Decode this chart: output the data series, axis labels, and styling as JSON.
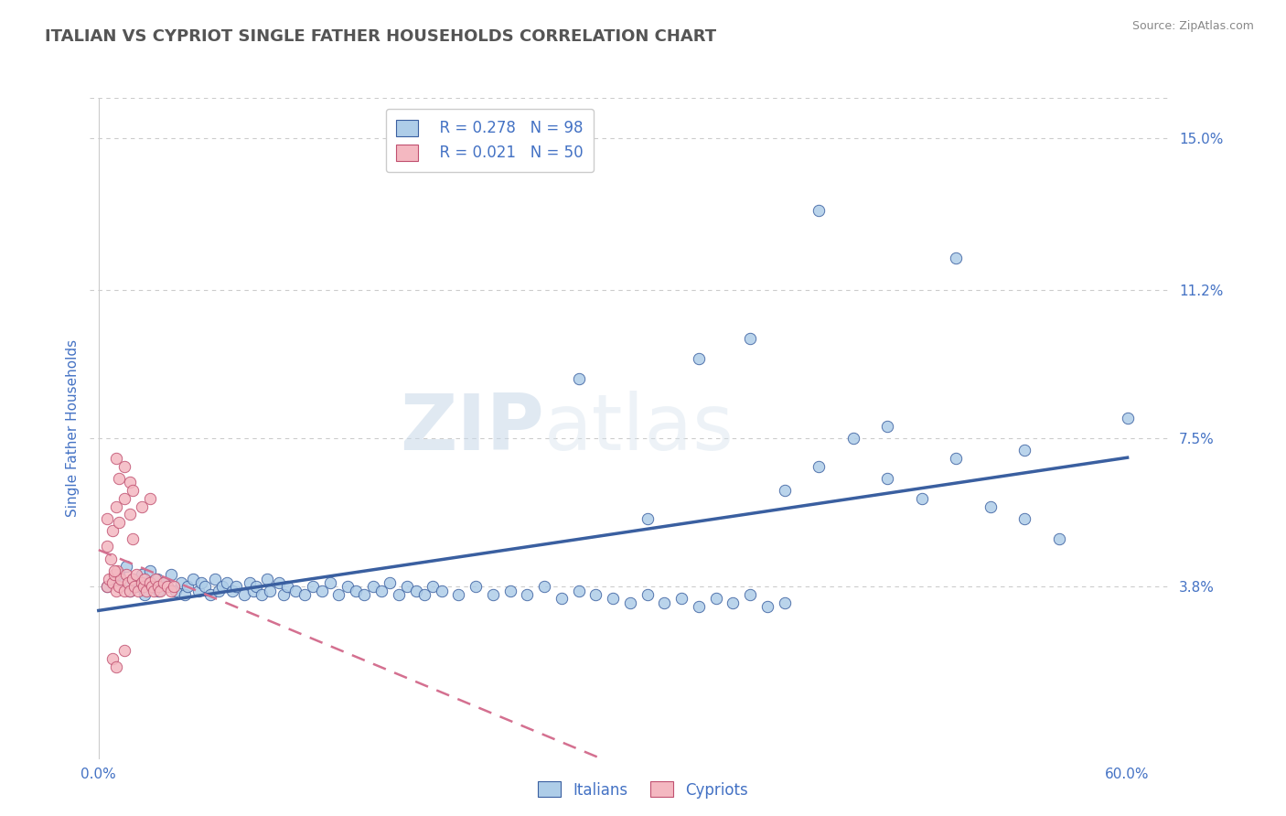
{
  "title": "ITALIAN VS CYPRIOT SINGLE FATHER HOUSEHOLDS CORRELATION CHART",
  "source": "Source: ZipAtlas.com",
  "ylabel": "Single Father Households",
  "xlim": [
    -0.005,
    0.625
  ],
  "ylim": [
    -0.005,
    0.16
  ],
  "xtick_positions": [
    0.0,
    0.6
  ],
  "xticklabels": [
    "0.0%",
    "60.0%"
  ],
  "ytick_positions": [
    0.038,
    0.075,
    0.112,
    0.15
  ],
  "ytick_labels": [
    "3.8%",
    "7.5%",
    "11.2%",
    "15.0%"
  ],
  "legend_r_italian": "R = 0.278",
  "legend_n_italian": "N = 98",
  "legend_r_cypriot": "R = 0.021",
  "legend_n_cypriot": "N = 50",
  "italian_color": "#aecde8",
  "cypriot_color": "#f4b8c1",
  "italian_line_color": "#3a5fa0",
  "cypriot_line_color": "#d47090",
  "watermark_zip": "ZIP",
  "watermark_atlas": "atlas",
  "background_color": "#ffffff",
  "grid_color": "#cccccc",
  "title_color": "#555555",
  "axis_label_color": "#4472c4",
  "italian_scatter_x": [
    0.005,
    0.01,
    0.012,
    0.015,
    0.016,
    0.018,
    0.02,
    0.022,
    0.025,
    0.027,
    0.03,
    0.032,
    0.034,
    0.035,
    0.038,
    0.04,
    0.042,
    0.045,
    0.048,
    0.05,
    0.052,
    0.055,
    0.058,
    0.06,
    0.062,
    0.065,
    0.068,
    0.07,
    0.072,
    0.075,
    0.078,
    0.08,
    0.085,
    0.088,
    0.09,
    0.092,
    0.095,
    0.098,
    0.1,
    0.105,
    0.108,
    0.11,
    0.115,
    0.12,
    0.125,
    0.13,
    0.135,
    0.14,
    0.145,
    0.15,
    0.155,
    0.16,
    0.165,
    0.17,
    0.175,
    0.18,
    0.185,
    0.19,
    0.195,
    0.2,
    0.21,
    0.22,
    0.23,
    0.24,
    0.25,
    0.26,
    0.27,
    0.28,
    0.29,
    0.3,
    0.31,
    0.32,
    0.33,
    0.34,
    0.35,
    0.36,
    0.37,
    0.38,
    0.39,
    0.4,
    0.28,
    0.35,
    0.42,
    0.44,
    0.46,
    0.48,
    0.5,
    0.52,
    0.54,
    0.56,
    0.42,
    0.5,
    0.38,
    0.6,
    0.46,
    0.54,
    0.32,
    0.4
  ],
  "italian_scatter_y": [
    0.038,
    0.04,
    0.041,
    0.039,
    0.043,
    0.037,
    0.04,
    0.038,
    0.041,
    0.036,
    0.042,
    0.038,
    0.04,
    0.037,
    0.039,
    0.038,
    0.041,
    0.037,
    0.039,
    0.036,
    0.038,
    0.04,
    0.037,
    0.039,
    0.038,
    0.036,
    0.04,
    0.037,
    0.038,
    0.039,
    0.037,
    0.038,
    0.036,
    0.039,
    0.037,
    0.038,
    0.036,
    0.04,
    0.037,
    0.039,
    0.036,
    0.038,
    0.037,
    0.036,
    0.038,
    0.037,
    0.039,
    0.036,
    0.038,
    0.037,
    0.036,
    0.038,
    0.037,
    0.039,
    0.036,
    0.038,
    0.037,
    0.036,
    0.038,
    0.037,
    0.036,
    0.038,
    0.036,
    0.037,
    0.036,
    0.038,
    0.035,
    0.037,
    0.036,
    0.035,
    0.034,
    0.036,
    0.034,
    0.035,
    0.033,
    0.035,
    0.034,
    0.036,
    0.033,
    0.034,
    0.09,
    0.095,
    0.068,
    0.075,
    0.065,
    0.06,
    0.07,
    0.058,
    0.055,
    0.05,
    0.132,
    0.12,
    0.1,
    0.08,
    0.078,
    0.072,
    0.055,
    0.062
  ],
  "cypriot_scatter_x": [
    0.005,
    0.006,
    0.008,
    0.009,
    0.01,
    0.011,
    0.012,
    0.013,
    0.015,
    0.016,
    0.017,
    0.018,
    0.02,
    0.021,
    0.022,
    0.023,
    0.025,
    0.026,
    0.027,
    0.028,
    0.03,
    0.031,
    0.032,
    0.033,
    0.035,
    0.036,
    0.038,
    0.04,
    0.042,
    0.044,
    0.005,
    0.008,
    0.01,
    0.012,
    0.015,
    0.018,
    0.02,
    0.005,
    0.007,
    0.009,
    0.01,
    0.012,
    0.015,
    0.018,
    0.02,
    0.025,
    0.03,
    0.008,
    0.01,
    0.015
  ],
  "cypriot_scatter_y": [
    0.038,
    0.04,
    0.039,
    0.041,
    0.037,
    0.042,
    0.038,
    0.04,
    0.037,
    0.041,
    0.039,
    0.037,
    0.04,
    0.038,
    0.041,
    0.037,
    0.039,
    0.038,
    0.04,
    0.037,
    0.039,
    0.038,
    0.037,
    0.04,
    0.038,
    0.037,
    0.039,
    0.038,
    0.037,
    0.038,
    0.055,
    0.052,
    0.058,
    0.054,
    0.06,
    0.056,
    0.05,
    0.048,
    0.045,
    0.042,
    0.07,
    0.065,
    0.068,
    0.064,
    0.062,
    0.058,
    0.06,
    0.02,
    0.018,
    0.022
  ]
}
